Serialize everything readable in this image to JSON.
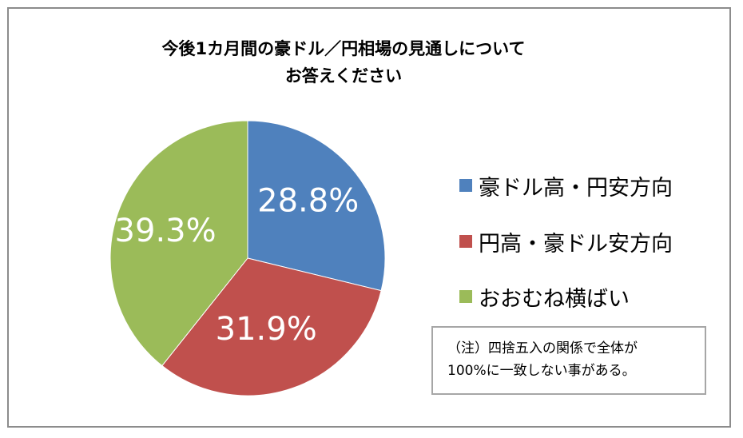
{
  "chart_data": {
    "type": "pie",
    "title_lines": [
      "今後1カ月間の豪ドル／円相場の見通しについて",
      "お答えください"
    ],
    "slices": [
      {
        "label": "豪ドル高・円安方向",
        "value": 28.8,
        "value_label": "28.8%",
        "color": "#4f81bd"
      },
      {
        "label": "円高・豪ドル安方向",
        "value": 31.9,
        "value_label": "31.9%",
        "color": "#c0504d"
      },
      {
        "label": "おおむね横ばい",
        "value": 39.3,
        "value_label": "39.3%",
        "color": "#9bbb59"
      }
    ],
    "legend_position": "right",
    "note_lines": [
      "（注）四捨五入の関係で全体が",
      "100%に一致しない事がある。"
    ]
  }
}
